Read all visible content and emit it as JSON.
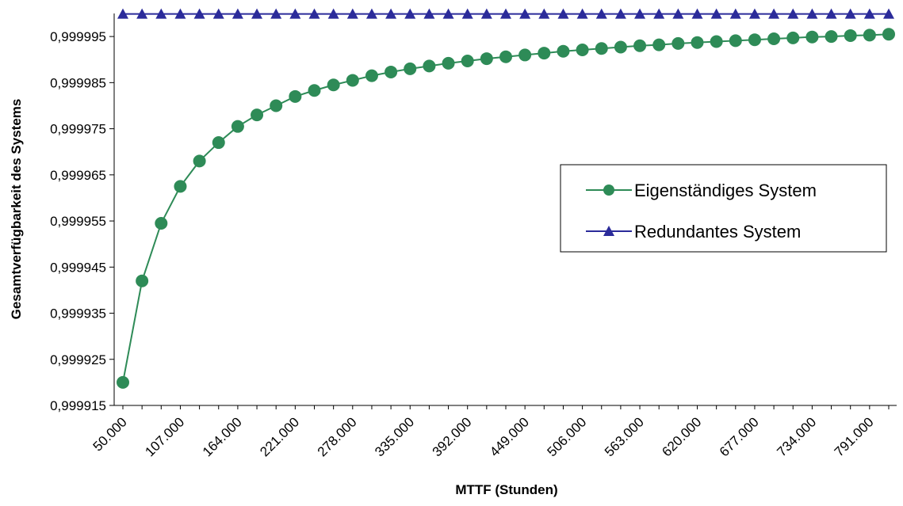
{
  "chart_data": {
    "type": "line",
    "xlabel": "MTTF (Stunden)",
    "ylabel": "Gesamtverfügbarkeit des Systems",
    "x_tick_labels": [
      "50.000",
      "107.000",
      "164.000",
      "221.000",
      "278.000",
      "335.000",
      "392.000",
      "449.000",
      "506.000",
      "563.000",
      "620.000",
      "677.000",
      "734.000",
      "791.000"
    ],
    "y_tick_labels": [
      "0,999915",
      "0,999925",
      "0,999935",
      "0,999945",
      "0,999955",
      "0,999965",
      "0,999975",
      "0,999985",
      "0,999995"
    ],
    "ylim": [
      0.999915,
      1.0
    ],
    "x_start": 50000,
    "x_step": 19000,
    "series": [
      {
        "name": "Eigenständiges System",
        "color": "#2e8b57",
        "marker": "circle",
        "values": [
          0.99992,
          0.999942,
          0.9999545,
          0.9999625,
          0.999968,
          0.999972,
          0.9999755,
          0.999978,
          0.99998,
          0.999982,
          0.9999833,
          0.9999845,
          0.9999855,
          0.9999865,
          0.9999873,
          0.999988,
          0.9999886,
          0.9999892,
          0.9999897,
          0.9999902,
          0.9999906,
          0.999991,
          0.9999914,
          0.9999918,
          0.9999921,
          0.9999924,
          0.9999927,
          0.999993,
          0.9999932,
          0.9999935,
          0.9999937,
          0.9999939,
          0.9999941,
          0.9999943,
          0.9999945,
          0.9999947,
          0.9999949,
          0.999995,
          0.9999952,
          0.9999953,
          0.9999955
        ]
      },
      {
        "name": "Redundantes System",
        "color": "#2b2b9a",
        "marker": "triangle",
        "values": [
          0.9999999,
          0.9999999,
          0.9999999,
          0.9999999,
          0.9999999,
          0.9999999,
          0.9999999,
          0.9999999,
          0.9999999,
          0.9999999,
          0.9999999,
          0.9999999,
          0.9999999,
          0.9999999,
          0.9999999,
          0.9999999,
          0.9999999,
          0.9999999,
          0.9999999,
          0.9999999,
          0.9999999,
          0.9999999,
          0.9999999,
          0.9999999,
          0.9999999,
          0.9999999,
          0.9999999,
          0.9999999,
          0.9999999,
          0.9999999,
          0.9999999,
          0.9999999,
          0.9999999,
          0.9999999,
          0.9999999,
          0.9999999,
          0.9999999,
          0.9999999,
          0.9999999,
          0.9999999,
          0.9999999
        ]
      }
    ],
    "grid": false,
    "legend_placement": "right"
  }
}
